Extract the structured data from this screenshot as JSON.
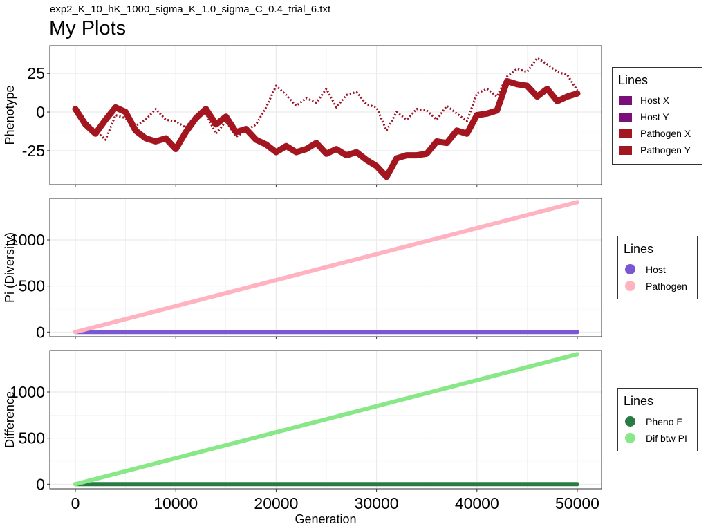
{
  "header": {
    "subtitle": "exp2_K_10_hK_1000_sigma_K_1.0_sigma_C_0.4_trial_6.txt",
    "title": "My Plots"
  },
  "chart_data": [
    {
      "type": "line",
      "panel": "phenotype",
      "ylabel": "Phenotype",
      "xlabel": "",
      "xlim": [
        0,
        50000
      ],
      "ylim": [
        -47,
        43
      ],
      "yticks": [
        {
          "v": 25,
          "label": "25"
        },
        {
          "v": 0,
          "label": "0"
        },
        {
          "v": -25,
          "label": "-25"
        }
      ],
      "xticks": [
        0,
        10000,
        20000,
        30000,
        40000,
        50000
      ],
      "grid": true,
      "legend": {
        "title": "Lines",
        "placement": "right",
        "shape": "square"
      },
      "series": [
        {
          "name": "Host X",
          "color": "#7a0f7a",
          "style": "dotted",
          "x": [
            0,
            1000,
            2000,
            3000,
            4000,
            5000,
            6000,
            7000,
            8000,
            9000,
            10000,
            11000,
            12000,
            13000,
            14000,
            15000,
            16000,
            17000,
            18000,
            19000,
            20000,
            21000,
            22000,
            23000,
            24000,
            25000,
            26000,
            27000,
            28000,
            29000,
            30000,
            31000,
            32000,
            33000,
            34000,
            35000,
            36000,
            37000,
            38000,
            39000,
            40000,
            41000,
            42000,
            43000,
            44000,
            45000,
            46000,
            47000,
            48000,
            49000,
            50000
          ],
          "y": [
            2,
            -8,
            -14,
            -5,
            3,
            0,
            -12,
            -17,
            -19,
            -17,
            -24,
            -13,
            -4,
            2,
            -8,
            -3,
            -13,
            -11,
            -18,
            -21,
            -26,
            -22,
            -26,
            -24,
            -20,
            -27,
            -24,
            -28,
            -26,
            -31,
            -35,
            -42,
            -30,
            -28,
            -28,
            -27,
            -19,
            -20,
            -12,
            -14,
            -2,
            -1,
            1,
            20,
            18,
            17,
            10,
            15,
            7,
            10,
            12
          ]
        },
        {
          "name": "Host Y",
          "color": "#7a0f7a",
          "style": "dotted",
          "x": [
            0,
            1000,
            2000,
            3000,
            4000,
            5000,
            6000,
            7000,
            8000,
            9000,
            10000,
            11000,
            12000,
            13000,
            14000,
            15000,
            16000,
            17000,
            18000,
            19000,
            20000,
            21000,
            22000,
            23000,
            24000,
            25000,
            26000,
            27000,
            28000,
            29000,
            30000,
            31000,
            32000,
            33000,
            34000,
            35000,
            36000,
            37000,
            38000,
            39000,
            40000,
            41000,
            42000,
            43000,
            44000,
            45000,
            46000,
            47000,
            48000,
            49000,
            50000
          ],
          "y": [
            1,
            -6,
            -12,
            -18,
            -2,
            -4,
            -9,
            -5,
            2,
            -5,
            -6,
            -10,
            -2,
            -1,
            -14,
            -6,
            -16,
            -12,
            -8,
            3,
            17,
            11,
            4,
            9,
            6,
            15,
            3,
            11,
            13,
            5,
            3,
            -12,
            0,
            -5,
            2,
            1,
            -5,
            4,
            -1,
            -6,
            12,
            15,
            10,
            23,
            28,
            26,
            35,
            31,
            26,
            24,
            14
          ]
        },
        {
          "name": "Pathogen X",
          "color": "#a3161f",
          "style": "thick",
          "x": [
            0,
            1000,
            2000,
            3000,
            4000,
            5000,
            6000,
            7000,
            8000,
            9000,
            10000,
            11000,
            12000,
            13000,
            14000,
            15000,
            16000,
            17000,
            18000,
            19000,
            20000,
            21000,
            22000,
            23000,
            24000,
            25000,
            26000,
            27000,
            28000,
            29000,
            30000,
            31000,
            32000,
            33000,
            34000,
            35000,
            36000,
            37000,
            38000,
            39000,
            40000,
            41000,
            42000,
            43000,
            44000,
            45000,
            46000,
            47000,
            48000,
            49000,
            50000
          ],
          "y": [
            2,
            -8,
            -14,
            -5,
            3,
            0,
            -12,
            -17,
            -19,
            -17,
            -24,
            -13,
            -4,
            2,
            -8,
            -3,
            -13,
            -11,
            -18,
            -21,
            -26,
            -22,
            -26,
            -24,
            -20,
            -27,
            -24,
            -28,
            -26,
            -31,
            -35,
            -42,
            -30,
            -28,
            -28,
            -27,
            -19,
            -20,
            -12,
            -14,
            -2,
            -1,
            1,
            20,
            18,
            17,
            10,
            15,
            7,
            10,
            12
          ]
        },
        {
          "name": "Pathogen Y",
          "color": "#a3161f",
          "style": "dotted",
          "x": [
            0,
            1000,
            2000,
            3000,
            4000,
            5000,
            6000,
            7000,
            8000,
            9000,
            10000,
            11000,
            12000,
            13000,
            14000,
            15000,
            16000,
            17000,
            18000,
            19000,
            20000,
            21000,
            22000,
            23000,
            24000,
            25000,
            26000,
            27000,
            28000,
            29000,
            30000,
            31000,
            32000,
            33000,
            34000,
            35000,
            36000,
            37000,
            38000,
            39000,
            40000,
            41000,
            42000,
            43000,
            44000,
            45000,
            46000,
            47000,
            48000,
            49000,
            50000
          ],
          "y": [
            1,
            -6,
            -12,
            -18,
            -2,
            -4,
            -9,
            -5,
            2,
            -5,
            -6,
            -10,
            -2,
            -1,
            -14,
            -6,
            -16,
            -12,
            -8,
            3,
            17,
            11,
            4,
            9,
            6,
            15,
            3,
            11,
            13,
            5,
            3,
            -12,
            0,
            -5,
            2,
            1,
            -5,
            4,
            -1,
            -6,
            12,
            15,
            10,
            23,
            28,
            26,
            35,
            31,
            26,
            24,
            14
          ]
        }
      ]
    },
    {
      "type": "line",
      "panel": "pi",
      "ylabel": "Pi (Diversity)",
      "xlabel": "",
      "xlim": [
        0,
        50000
      ],
      "ylim": [
        -50,
        1450
      ],
      "yticks": [
        {
          "v": 1000,
          "label": "1000"
        },
        {
          "v": 500,
          "label": "500"
        },
        {
          "v": 0,
          "label": "0"
        }
      ],
      "xticks": [
        0,
        10000,
        20000,
        30000,
        40000,
        50000
      ],
      "grid": true,
      "legend": {
        "title": "Lines",
        "placement": "right",
        "shape": "circle"
      },
      "series": [
        {
          "name": "Host",
          "color": "#7b57d3",
          "x": [
            0,
            50000
          ],
          "y": [
            0,
            0
          ]
        },
        {
          "name": "Pathogen",
          "color": "#ffb2c0",
          "x": [
            0,
            50000
          ],
          "y": [
            0,
            1410
          ]
        }
      ]
    },
    {
      "type": "line",
      "panel": "difference",
      "ylabel": "Difference",
      "xlabel": "Generation",
      "xlim": [
        0,
        50000
      ],
      "ylim": [
        -50,
        1450
      ],
      "yticks": [
        {
          "v": 1000,
          "label": "1000"
        },
        {
          "v": 500,
          "label": "500"
        },
        {
          "v": 0,
          "label": "0"
        }
      ],
      "xticks": [
        0,
        10000,
        20000,
        30000,
        40000,
        50000
      ],
      "grid": true,
      "legend": {
        "title": "Lines",
        "placement": "right",
        "shape": "circle"
      },
      "series": [
        {
          "name": "Pheno E",
          "color": "#2a7a44",
          "x": [
            0,
            50000
          ],
          "y": [
            0,
            0
          ]
        },
        {
          "name": "Dif btw PI",
          "color": "#88e888",
          "x": [
            0,
            50000
          ],
          "y": [
            0,
            1410
          ]
        }
      ]
    }
  ]
}
